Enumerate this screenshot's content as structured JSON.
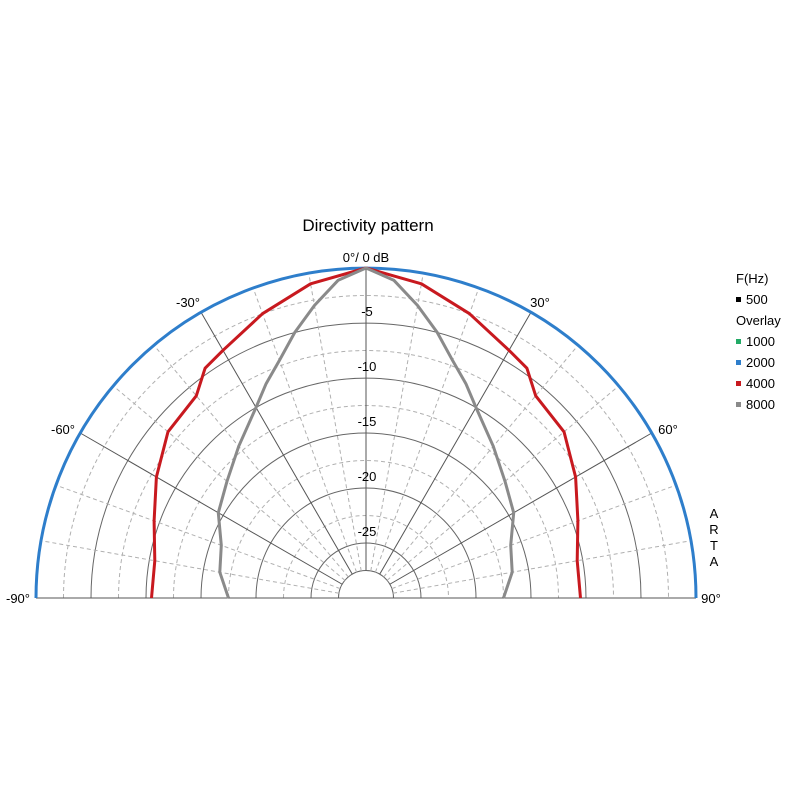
{
  "chart_data": {
    "type": "polar",
    "title": "Directivity pattern",
    "top_label": "0°/ 0 dB",
    "angle_labels": [
      "-90°",
      "-60°",
      "-30°",
      "30°",
      "60°",
      "90°"
    ],
    "radial_ticks": [
      -5,
      -10,
      -15,
      -20,
      -25
    ],
    "radial_range_db": [
      -30,
      0
    ],
    "angle_range_deg": [
      -90,
      90
    ],
    "grid": true,
    "legend_position": "right",
    "legend_header": "F(Hz)",
    "base_series": {
      "name": "500",
      "color": "#000000"
    },
    "overlay_header": "Overlay",
    "series": [
      {
        "name": "1000",
        "color": "#22aa66",
        "angles": [],
        "values": []
      },
      {
        "name": "2000",
        "color": "#2e7ecb",
        "angles": [
          -90,
          -60,
          -30,
          0,
          30,
          60,
          90
        ],
        "values": [
          0,
          0,
          0,
          0,
          0,
          0,
          0
        ]
      },
      {
        "name": "4000",
        "color": "#c8191f",
        "angles": [
          -90,
          -80,
          -70,
          -60,
          -50,
          -40,
          -35,
          -30,
          -20,
          -10,
          0,
          10,
          20,
          30,
          35,
          40,
          50,
          60,
          70,
          80,
          90
        ],
        "values": [
          -10.5,
          -10.5,
          -9.5,
          -8,
          -6.5,
          -6,
          -4.5,
          -4,
          -2.5,
          -1,
          0,
          -1,
          -2.5,
          -4,
          -4.5,
          -6,
          -6.5,
          -8,
          -9.5,
          -10.5,
          -10.5
        ]
      },
      {
        "name": "8000",
        "color": "#8a8a8a",
        "angles": [
          -90,
          -80,
          -70,
          -60,
          -50,
          -40,
          -30,
          -25,
          -20,
          -15,
          -10,
          -5,
          0,
          5,
          10,
          15,
          20,
          25,
          30,
          40,
          50,
          60,
          70,
          80,
          90
        ],
        "values": [
          -17.5,
          -16.5,
          -16,
          -14.5,
          -13.5,
          -12,
          -10,
          -8.5,
          -7,
          -5,
          -3,
          -1,
          0,
          -1,
          -3,
          -5,
          -7,
          -8.5,
          -10,
          -12,
          -13.5,
          -14.5,
          -16,
          -16.5,
          -17.5
        ]
      }
    ]
  },
  "watermark": [
    "A",
    "R",
    "T",
    "A"
  ]
}
